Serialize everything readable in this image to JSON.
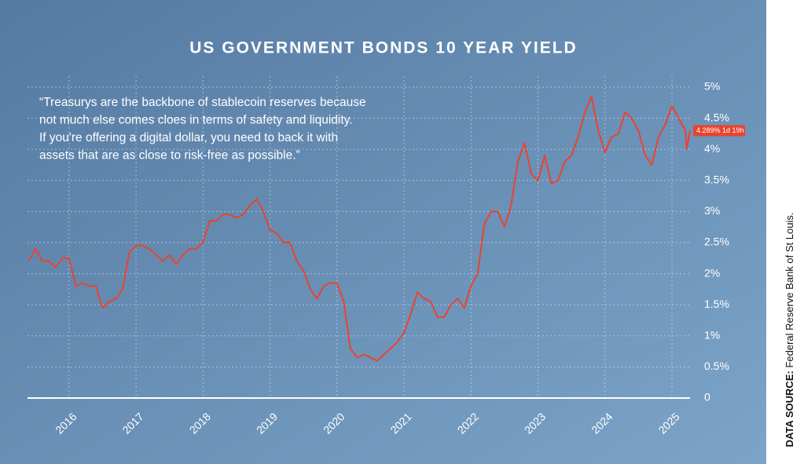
{
  "chart_data": {
    "type": "line",
    "title": "US GOVERNMENT BONDS 10 YEAR YIELD",
    "annotation": [
      "“Treasurys are the backbone of stablecoin reserves because",
      "not much else comes cloes in terms of safety and liquidity.",
      "If you're offering a digital dollar, you need to back it with",
      "assets that are as close to risk-free as possible.”"
    ],
    "last_label": "4.289% 1d 19h",
    "source_label": "DATA SOURCE:",
    "source": "Federal Reserve Bank of St Louis.",
    "x": [
      2015.4,
      2015.5,
      2015.6,
      2015.7,
      2015.8,
      2015.9,
      2016.0,
      2016.1,
      2016.2,
      2016.3,
      2016.4,
      2016.5,
      2016.6,
      2016.7,
      2016.8,
      2016.9,
      2017.0,
      2017.1,
      2017.2,
      2017.3,
      2017.4,
      2017.5,
      2017.6,
      2017.7,
      2017.8,
      2017.9,
      2018.0,
      2018.1,
      2018.2,
      2018.3,
      2018.4,
      2018.5,
      2018.6,
      2018.7,
      2018.8,
      2018.9,
      2019.0,
      2019.1,
      2019.2,
      2019.3,
      2019.4,
      2019.5,
      2019.6,
      2019.7,
      2019.8,
      2019.9,
      2020.0,
      2020.1,
      2020.2,
      2020.3,
      2020.4,
      2020.5,
      2020.6,
      2020.7,
      2020.8,
      2020.9,
      2021.0,
      2021.1,
      2021.2,
      2021.3,
      2021.4,
      2021.5,
      2021.6,
      2021.7,
      2021.8,
      2021.9,
      2022.0,
      2022.1,
      2022.2,
      2022.3,
      2022.4,
      2022.5,
      2022.6,
      2022.7,
      2022.8,
      2022.9,
      2023.0,
      2023.1,
      2023.2,
      2023.3,
      2023.4,
      2023.5,
      2023.6,
      2023.7,
      2023.8,
      2023.9,
      2024.0,
      2024.1,
      2024.2,
      2024.3,
      2024.4,
      2024.5,
      2024.6,
      2024.7,
      2024.8,
      2024.9,
      2025.0,
      2025.1,
      2025.2,
      2025.22,
      2025.27
    ],
    "series": [
      {
        "color": "#e8442f",
        "values": [
          2.2,
          2.4,
          2.2,
          2.2,
          2.1,
          2.25,
          2.25,
          1.8,
          1.85,
          1.8,
          1.8,
          1.45,
          1.55,
          1.6,
          1.75,
          2.35,
          2.45,
          2.45,
          2.4,
          2.3,
          2.2,
          2.3,
          2.15,
          2.3,
          2.4,
          2.4,
          2.5,
          2.85,
          2.85,
          2.95,
          2.95,
          2.9,
          2.95,
          3.1,
          3.2,
          3.0,
          2.7,
          2.65,
          2.5,
          2.5,
          2.2,
          2.05,
          1.75,
          1.6,
          1.8,
          1.85,
          1.85,
          1.55,
          0.8,
          0.65,
          0.7,
          0.65,
          0.6,
          0.7,
          0.8,
          0.9,
          1.05,
          1.35,
          1.7,
          1.6,
          1.55,
          1.3,
          1.3,
          1.5,
          1.6,
          1.45,
          1.8,
          2.0,
          2.8,
          3.0,
          3.0,
          2.75,
          3.1,
          3.8,
          4.1,
          3.6,
          3.5,
          3.9,
          3.45,
          3.5,
          3.8,
          3.9,
          4.2,
          4.6,
          4.85,
          4.3,
          3.95,
          4.2,
          4.25,
          4.6,
          4.5,
          4.3,
          3.9,
          3.75,
          4.2,
          4.4,
          4.7,
          4.5,
          4.3,
          4.0,
          4.3
        ]
      }
    ],
    "xlim": [
      2015.38,
      2025.27
    ],
    "xticks": [
      2016,
      2017,
      2018,
      2019,
      2020,
      2021,
      2022,
      2023,
      2024,
      2025
    ],
    "ylim": [
      0,
      5.05
    ],
    "yticks": [
      0,
      {
        "value": 0.5,
        "label": "0.5%"
      },
      {
        "value": 1,
        "label": "1%"
      },
      {
        "value": 1.5,
        "label": "1.5%"
      },
      {
        "value": 2,
        "label": "2%"
      },
      {
        "value": 2.5,
        "label": "2.5%"
      },
      {
        "value": 3,
        "label": "3%"
      },
      {
        "value": 3.5,
        "label": "3.5%"
      },
      {
        "value": 4,
        "label": "4%"
      },
      {
        "value": 4.5,
        "label": "4.5%"
      },
      {
        "value": 5,
        "label": "5%"
      }
    ],
    "grid": true
  }
}
